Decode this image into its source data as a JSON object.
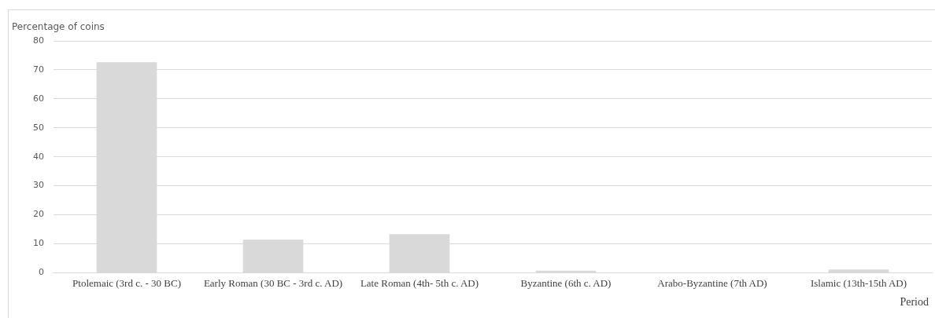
{
  "chart_data": {
    "type": "bar",
    "ylabel": "Percentage of coins",
    "xlabel": "Period",
    "categories": [
      "Ptolemaic (3rd c. - 30 BC)",
      "Early Roman (30 BC - 3rd c. AD)",
      "Late Roman (4th- 5th c. AD)",
      "Byzantine (6th c. AD)",
      "Arabo-Byzantine (7th AD)",
      "Islamic (13th-15th AD)"
    ],
    "values": [
      72.6,
      11.4,
      13.3,
      0.7,
      0,
      1.1
    ],
    "color": "#d9d9d9",
    "ylim": [
      0,
      80
    ],
    "yticks": [
      0,
      10,
      20,
      30,
      40,
      50,
      60,
      70,
      80
    ],
    "grid": "y"
  }
}
